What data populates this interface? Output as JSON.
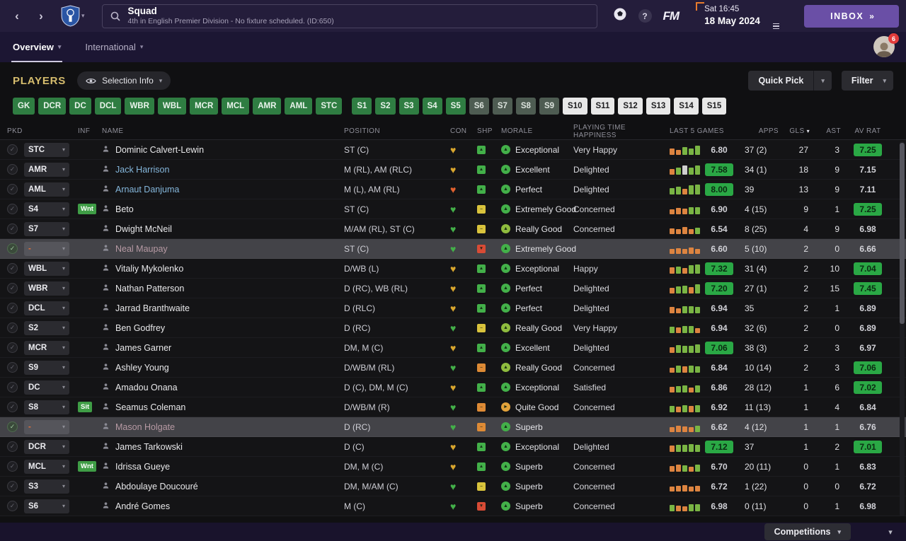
{
  "topbar": {
    "title": "Squad",
    "subtitle": "4th in English Premier Division - No fixture scheduled. (ID:650)",
    "fm_logo": "FM",
    "datetime_line1": "Sat 16:45",
    "datetime_line2": "18 May 2024",
    "inbox_label": "INBOX",
    "inbox_chevrons": "»"
  },
  "tabs": {
    "overview": "Overview",
    "international": "International"
  },
  "avatar_badge": "6",
  "players_bar": {
    "heading": "PLAYERS",
    "selection_info": "Selection Info",
    "quick_pick": "Quick Pick",
    "filter": "Filter"
  },
  "position_filters": [
    {
      "label": "GK",
      "style": "green"
    },
    {
      "label": "DCR",
      "style": "green"
    },
    {
      "label": "DC",
      "style": "green"
    },
    {
      "label": "DCL",
      "style": "green"
    },
    {
      "label": "WBR",
      "style": "green"
    },
    {
      "label": "WBL",
      "style": "green"
    },
    {
      "label": "MCR",
      "style": "green"
    },
    {
      "label": "MCL",
      "style": "green"
    },
    {
      "label": "AMR",
      "style": "green"
    },
    {
      "label": "AML",
      "style": "green"
    },
    {
      "label": "STC",
      "style": "green"
    },
    {
      "label": "S1",
      "style": "green",
      "gap": true
    },
    {
      "label": "S2",
      "style": "green"
    },
    {
      "label": "S3",
      "style": "green"
    },
    {
      "label": "S4",
      "style": "green"
    },
    {
      "label": "S5",
      "style": "green"
    },
    {
      "label": "S6",
      "style": "graygreen"
    },
    {
      "label": "S7",
      "style": "graygreen"
    },
    {
      "label": "S8",
      "style": "graygreen"
    },
    {
      "label": "S9",
      "style": "graygreen"
    },
    {
      "label": "S10",
      "style": "white"
    },
    {
      "label": "S11",
      "style": "white"
    },
    {
      "label": "S12",
      "style": "white"
    },
    {
      "label": "S13",
      "style": "white"
    },
    {
      "label": "S14",
      "style": "white"
    },
    {
      "label": "S15",
      "style": "white"
    }
  ],
  "table": {
    "headers": [
      "PKD",
      "INF",
      "NAME",
      "POSITION",
      "CON",
      "SHP",
      "MORALE",
      "PLAYING TIME HAPPINESS",
      "LAST 5 GAMES",
      "APPS",
      "GLS",
      "AST",
      "AV RAT"
    ],
    "sorted_column": "GLS",
    "players": [
      {
        "pkd": "STC",
        "inf": "",
        "name": "Dominic Calvert-Lewin",
        "name_style": "default",
        "position": "ST (C)",
        "condition": "gold",
        "sharpness": "green",
        "morale": "Exceptional",
        "morale_tone": "high",
        "happiness": "Very Happy",
        "form": [
          [
            "o",
            60
          ],
          [
            "o",
            50
          ],
          [
            "g",
            75
          ],
          [
            "g",
            60
          ],
          [
            "g",
            85
          ]
        ],
        "last5": "6.80",
        "last5_badge": false,
        "apps": "37 (2)",
        "gls": "27",
        "ast": "3",
        "avrat": "7.25",
        "avrat_badge": true,
        "highlight": false
      },
      {
        "pkd": "AMR",
        "inf": "",
        "name": "Jack Harrison",
        "name_style": "loan",
        "position": "M (RL), AM (RLC)",
        "condition": "gold",
        "sharpness": "green",
        "morale": "Excellent",
        "morale_tone": "high",
        "happiness": "Delighted",
        "form": [
          [
            "o",
            55
          ],
          [
            "g",
            70
          ],
          [
            "n",
            85
          ],
          [
            "g",
            65
          ],
          [
            "g",
            90
          ]
        ],
        "last5": "7.58",
        "last5_badge": true,
        "apps": "34 (1)",
        "gls": "18",
        "ast": "9",
        "avrat": "7.15",
        "avrat_badge": false,
        "highlight": false
      },
      {
        "pkd": "AML",
        "inf": "",
        "name": "Arnaut Danjuma",
        "name_style": "loan",
        "position": "M (L), AM (RL)",
        "condition": "red",
        "sharpness": "green",
        "morale": "Perfect",
        "morale_tone": "high",
        "happiness": "Delighted",
        "form": [
          [
            "g",
            60
          ],
          [
            "g",
            75
          ],
          [
            "o",
            55
          ],
          [
            "g",
            85
          ],
          [
            "g",
            95
          ]
        ],
        "last5": "8.00",
        "last5_badge": true,
        "apps": "39",
        "gls": "13",
        "ast": "9",
        "avrat": "7.11",
        "avrat_badge": false,
        "highlight": false
      },
      {
        "pkd": "S4",
        "inf": "Wnt",
        "name": "Beto",
        "name_style": "default",
        "position": "ST (C)",
        "condition": "green",
        "sharpness": "yellow",
        "morale": "Extremely Good",
        "morale_tone": "high",
        "happiness": "Concerned",
        "form": [
          [
            "o",
            50
          ],
          [
            "o",
            60
          ],
          [
            "o",
            55
          ],
          [
            "g",
            70
          ],
          [
            "g",
            65
          ]
        ],
        "last5": "6.90",
        "last5_badge": false,
        "apps": "4 (15)",
        "gls": "9",
        "ast": "1",
        "avrat": "7.25",
        "avrat_badge": true,
        "highlight": false
      },
      {
        "pkd": "S7",
        "inf": "",
        "name": "Dwight McNeil",
        "name_style": "default",
        "position": "M/AM (RL), ST (C)",
        "condition": "green",
        "sharpness": "yellow",
        "morale": "Really Good",
        "morale_tone": "good",
        "happiness": "Concerned",
        "form": [
          [
            "o",
            55
          ],
          [
            "o",
            45
          ],
          [
            "o",
            65
          ],
          [
            "o",
            50
          ],
          [
            "g",
            60
          ]
        ],
        "last5": "6.54",
        "last5_badge": false,
        "apps": "8 (25)",
        "gls": "4",
        "ast": "9",
        "avrat": "6.98",
        "avrat_badge": false,
        "highlight": false
      },
      {
        "pkd": "-",
        "inf": "",
        "name": "Neal Maupay",
        "name_style": "muted",
        "position": "ST (C)",
        "condition": "green",
        "sharpness": "red",
        "morale": "Extremely Good",
        "morale_tone": "high",
        "happiness": "",
        "form": [
          [
            "o",
            50
          ],
          [
            "o",
            55
          ],
          [
            "o",
            45
          ],
          [
            "o",
            60
          ],
          [
            "o",
            50
          ]
        ],
        "last5": "6.60",
        "last5_badge": false,
        "apps": "5 (10)",
        "gls": "2",
        "ast": "0",
        "avrat": "6.66",
        "avrat_badge": false,
        "highlight": true
      },
      {
        "pkd": "WBL",
        "inf": "",
        "name": "Vitaliy Mykolenko",
        "name_style": "default",
        "position": "D/WB (L)",
        "condition": "gold",
        "sharpness": "green",
        "morale": "Exceptional",
        "morale_tone": "high",
        "happiness": "Happy",
        "form": [
          [
            "o",
            60
          ],
          [
            "g",
            70
          ],
          [
            "o",
            55
          ],
          [
            "g",
            80
          ],
          [
            "g",
            85
          ]
        ],
        "last5": "7.32",
        "last5_badge": true,
        "apps": "31 (4)",
        "gls": "2",
        "ast": "10",
        "avrat": "7.04",
        "avrat_badge": true,
        "highlight": false
      },
      {
        "pkd": "WBR",
        "inf": "",
        "name": "Nathan Patterson",
        "name_style": "default",
        "position": "D (RC), WB (RL)",
        "condition": "gold",
        "sharpness": "green",
        "morale": "Perfect",
        "morale_tone": "high",
        "happiness": "Delighted",
        "form": [
          [
            "o",
            55
          ],
          [
            "g",
            65
          ],
          [
            "g",
            75
          ],
          [
            "o",
            60
          ],
          [
            "g",
            85
          ]
        ],
        "last5": "7.20",
        "last5_badge": true,
        "apps": "27 (1)",
        "gls": "2",
        "ast": "15",
        "avrat": "7.45",
        "avrat_badge": true,
        "highlight": false
      },
      {
        "pkd": "DCL",
        "inf": "",
        "name": "Jarrad Branthwaite",
        "name_style": "default",
        "position": "D (RLC)",
        "condition": "gold",
        "sharpness": "green",
        "morale": "Perfect",
        "morale_tone": "high",
        "happiness": "Delighted",
        "form": [
          [
            "o",
            60
          ],
          [
            "o",
            50
          ],
          [
            "g",
            70
          ],
          [
            "g",
            65
          ],
          [
            "g",
            60
          ]
        ],
        "last5": "6.94",
        "last5_badge": false,
        "apps": "35",
        "gls": "2",
        "ast": "1",
        "avrat": "6.89",
        "avrat_badge": false,
        "highlight": false
      },
      {
        "pkd": "S2",
        "inf": "",
        "name": "Ben Godfrey",
        "name_style": "default",
        "position": "D (RC)",
        "condition": "green",
        "sharpness": "yellow",
        "morale": "Really Good",
        "morale_tone": "good",
        "happiness": "Very Happy",
        "form": [
          [
            "g",
            60
          ],
          [
            "o",
            55
          ],
          [
            "g",
            70
          ],
          [
            "g",
            65
          ],
          [
            "o",
            50
          ]
        ],
        "last5": "6.94",
        "last5_badge": false,
        "apps": "32 (6)",
        "gls": "2",
        "ast": "0",
        "avrat": "6.89",
        "avrat_badge": false,
        "highlight": false
      },
      {
        "pkd": "MCR",
        "inf": "",
        "name": "James Garner",
        "name_style": "default",
        "position": "DM, M (C)",
        "condition": "gold",
        "sharpness": "green",
        "morale": "Excellent",
        "morale_tone": "high",
        "happiness": "Delighted",
        "form": [
          [
            "o",
            55
          ],
          [
            "g",
            75
          ],
          [
            "g",
            65
          ],
          [
            "g",
            70
          ],
          [
            "g",
            80
          ]
        ],
        "last5": "7.06",
        "last5_badge": true,
        "apps": "38 (3)",
        "gls": "2",
        "ast": "3",
        "avrat": "6.97",
        "avrat_badge": false,
        "highlight": false
      },
      {
        "pkd": "S9",
        "inf": "",
        "name": "Ashley Young",
        "name_style": "default",
        "position": "D/WB/M (RL)",
        "condition": "green",
        "sharpness": "orange",
        "morale": "Really Good",
        "morale_tone": "good",
        "happiness": "Concerned",
        "form": [
          [
            "o",
            50
          ],
          [
            "g",
            65
          ],
          [
            "o",
            60
          ],
          [
            "g",
            70
          ],
          [
            "g",
            60
          ]
        ],
        "last5": "6.84",
        "last5_badge": false,
        "apps": "10 (14)",
        "gls": "2",
        "ast": "3",
        "avrat": "7.06",
        "avrat_badge": true,
        "highlight": false
      },
      {
        "pkd": "DC",
        "inf": "",
        "name": "Amadou Onana",
        "name_style": "default",
        "position": "D (C), DM, M (C)",
        "condition": "gold",
        "sharpness": "green",
        "morale": "Exceptional",
        "morale_tone": "high",
        "happiness": "Satisfied",
        "form": [
          [
            "o",
            55
          ],
          [
            "g",
            60
          ],
          [
            "g",
            70
          ],
          [
            "o",
            50
          ],
          [
            "g",
            65
          ]
        ],
        "last5": "6.86",
        "last5_badge": false,
        "apps": "28 (12)",
        "gls": "1",
        "ast": "6",
        "avrat": "7.02",
        "avrat_badge": true,
        "highlight": false
      },
      {
        "pkd": "S8",
        "inf": "Sit",
        "name": "Seamus Coleman",
        "name_style": "default",
        "position": "D/WB/M (R)",
        "condition": "green",
        "sharpness": "orange",
        "morale": "Quite Good",
        "morale_tone": "mid",
        "happiness": "Concerned",
        "form": [
          [
            "g",
            60
          ],
          [
            "o",
            55
          ],
          [
            "g",
            65
          ],
          [
            "o",
            60
          ],
          [
            "g",
            70
          ]
        ],
        "last5": "6.92",
        "last5_badge": false,
        "apps": "11 (13)",
        "gls": "1",
        "ast": "4",
        "avrat": "6.84",
        "avrat_badge": false,
        "highlight": false
      },
      {
        "pkd": "-",
        "inf": "",
        "name": "Mason Holgate",
        "name_style": "muted",
        "position": "D (RC)",
        "condition": "green",
        "sharpness": "orange",
        "morale": "Superb",
        "morale_tone": "high",
        "happiness": "",
        "form": [
          [
            "o",
            50
          ],
          [
            "o",
            60
          ],
          [
            "o",
            55
          ],
          [
            "o",
            45
          ],
          [
            "g",
            60
          ]
        ],
        "last5": "6.62",
        "last5_badge": false,
        "apps": "4 (12)",
        "gls": "1",
        "ast": "1",
        "avrat": "6.76",
        "avrat_badge": false,
        "highlight": true
      },
      {
        "pkd": "DCR",
        "inf": "",
        "name": "James Tarkowski",
        "name_style": "default",
        "position": "D (C)",
        "condition": "gold",
        "sharpness": "green",
        "morale": "Exceptional",
        "morale_tone": "high",
        "happiness": "Delighted",
        "form": [
          [
            "o",
            60
          ],
          [
            "g",
            70
          ],
          [
            "g",
            65
          ],
          [
            "g",
            75
          ],
          [
            "g",
            70
          ]
        ],
        "last5": "7.12",
        "last5_badge": true,
        "apps": "37",
        "gls": "1",
        "ast": "2",
        "avrat": "7.01",
        "avrat_badge": true,
        "highlight": false
      },
      {
        "pkd": "MCL",
        "inf": "Wnt",
        "name": "Idrissa Gueye",
        "name_style": "default",
        "position": "DM, M (C)",
        "condition": "gold",
        "sharpness": "green",
        "morale": "Superb",
        "morale_tone": "high",
        "happiness": "Concerned",
        "form": [
          [
            "o",
            55
          ],
          [
            "o",
            65
          ],
          [
            "g",
            60
          ],
          [
            "o",
            50
          ],
          [
            "g",
            65
          ]
        ],
        "last5": "6.70",
        "last5_badge": false,
        "apps": "20 (11)",
        "gls": "0",
        "ast": "1",
        "avrat": "6.83",
        "avrat_badge": false,
        "highlight": false
      },
      {
        "pkd": "S3",
        "inf": "",
        "name": "Abdoulaye Doucouré",
        "name_style": "default",
        "position": "DM, M/AM (C)",
        "condition": "green",
        "sharpness": "yellow",
        "morale": "Superb",
        "morale_tone": "high",
        "happiness": "Concerned",
        "form": [
          [
            "o",
            50
          ],
          [
            "o",
            55
          ],
          [
            "o",
            60
          ],
          [
            "o",
            50
          ],
          [
            "o",
            55
          ]
        ],
        "last5": "6.72",
        "last5_badge": false,
        "apps": "1 (22)",
        "gls": "0",
        "ast": "0",
        "avrat": "6.72",
        "avrat_badge": false,
        "highlight": false
      },
      {
        "pkd": "S6",
        "inf": "",
        "name": "André Gomes",
        "name_style": "default",
        "position": "M (C)",
        "condition": "green",
        "sharpness": "red",
        "morale": "Superb",
        "morale_tone": "high",
        "happiness": "Concerned",
        "form": [
          [
            "g",
            60
          ],
          [
            "o",
            55
          ],
          [
            "o",
            50
          ],
          [
            "g",
            65
          ],
          [
            "g",
            70
          ]
        ],
        "last5": "6.98",
        "last5_badge": false,
        "apps": "0 (11)",
        "gls": "0",
        "ast": "1",
        "avrat": "6.98",
        "avrat_badge": false,
        "highlight": false
      }
    ]
  },
  "bottom": {
    "competitions": "Competitions"
  },
  "colors": {
    "accent_purple": "#6a4fa6",
    "badge_green": "#2aa845",
    "pos_green": "#2f7d42",
    "heart_gold": "#d9a62e",
    "heart_green": "#43b049",
    "heart_red": "#e0612f",
    "highlight_row": "#434348",
    "continue_orange": "#e87b2c"
  }
}
